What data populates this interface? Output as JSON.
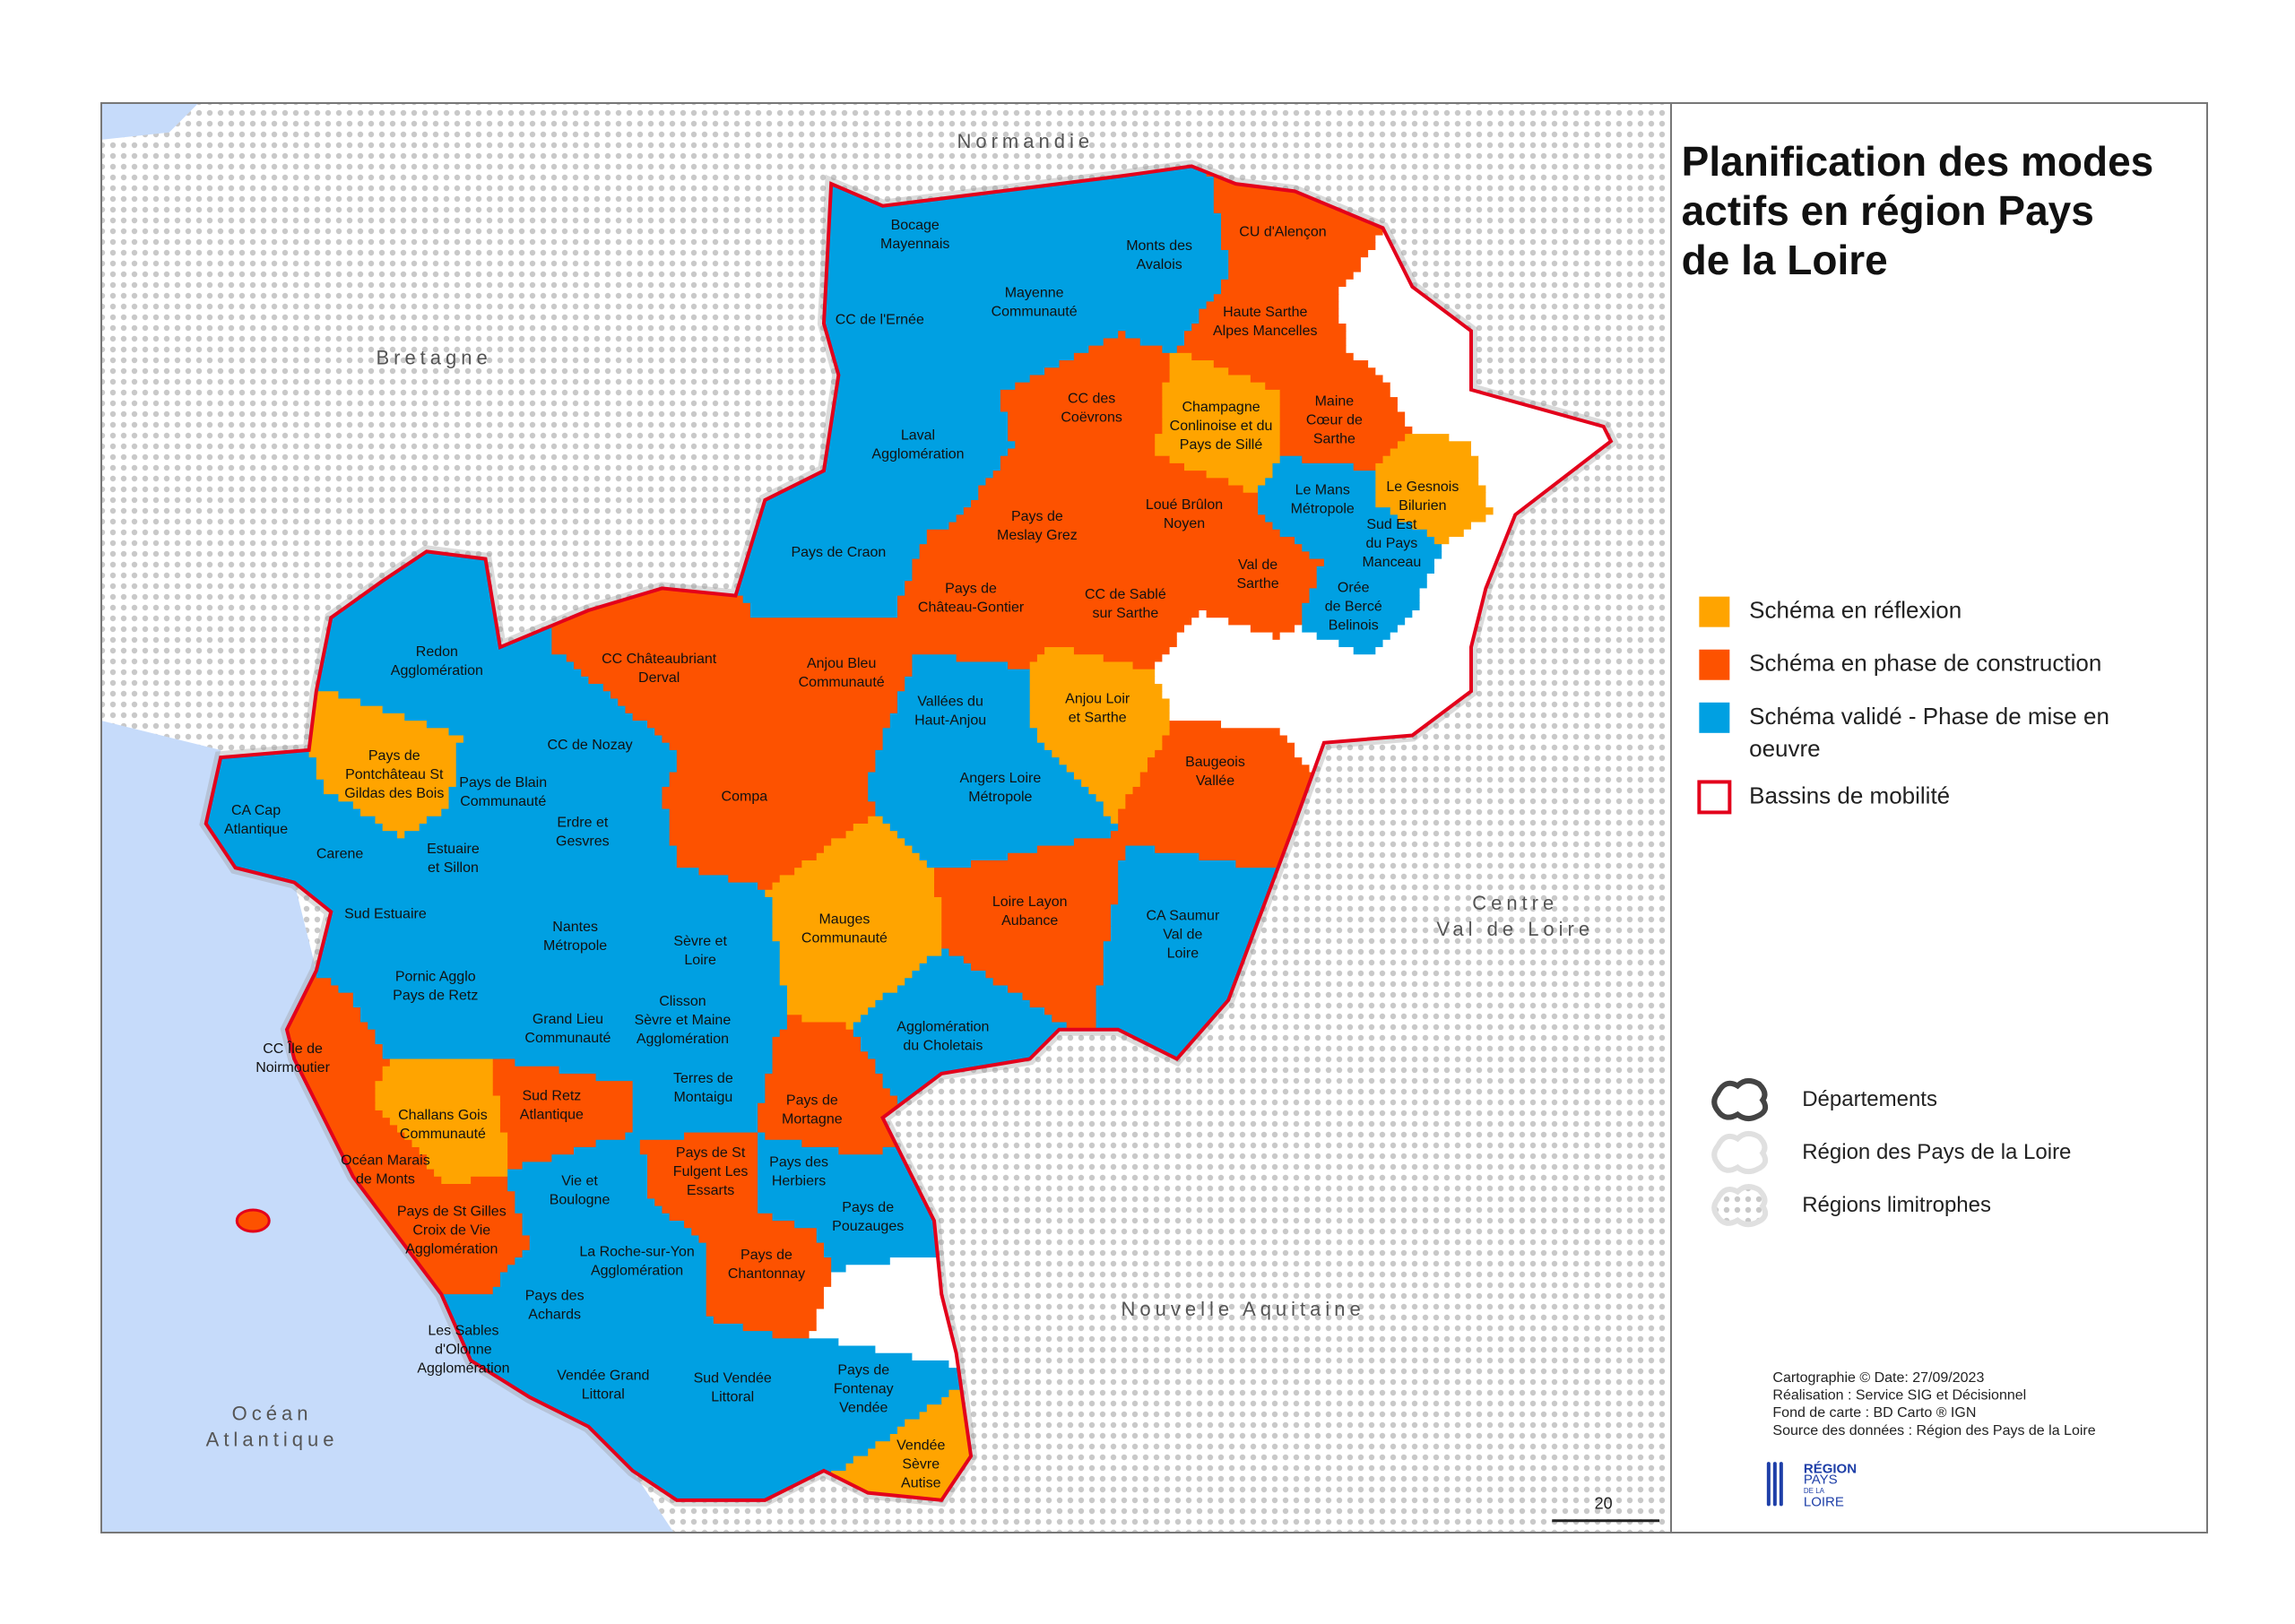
{
  "title": [
    "Planification des modes",
    "actifs en région Pays",
    "de la Loire"
  ],
  "regions": [
    [
      "Normandie"
    ],
    [
      "Bretagne"
    ],
    [
      "Centre",
      "Val de Loire"
    ],
    [
      "Nouvelle Aquitaine"
    ],
    [
      "Océan",
      "Atlantique"
    ]
  ],
  "territories": [
    {
      "label": [
        "Bocage",
        "Mayennais"
      ],
      "color": "#00a0e2"
    },
    {
      "label": [
        "Monts des",
        "Avalois"
      ],
      "color": "#00a0e2"
    },
    {
      "label": [
        "CU d'Alençon"
      ],
      "color": "#fd5200"
    },
    {
      "label": [
        "CC de l'Ernée"
      ],
      "color": "#00a0e2"
    },
    {
      "label": [
        "Mayenne",
        "Communauté"
      ],
      "color": "#00a0e2"
    },
    {
      "label": [
        "Haute Sarthe",
        "Alpes Mancelles"
      ],
      "color": "#fd5200"
    },
    {
      "label": [
        "CC des",
        "Coëvrons"
      ],
      "color": "#fd5200"
    },
    {
      "label": [
        "Champagne",
        "Conlinoise et du",
        "Pays de Sillé"
      ],
      "color": "#ffa400"
    },
    {
      "label": [
        "Maine",
        "Cœur de",
        "Sarthe"
      ],
      "color": "#fd5200"
    },
    {
      "label": [
        "Laval",
        "Agglomération"
      ],
      "color": "#00a0e2"
    },
    {
      "label": [
        "Le Mans",
        "Métropole"
      ],
      "color": "#00a0e2"
    },
    {
      "label": [
        "Le Gesnois",
        "Bilurien"
      ],
      "color": "#ffa400"
    },
    {
      "label": [
        "Loué Brûlon",
        "Noyen"
      ],
      "color": "#fd5200"
    },
    {
      "label": [
        "Pays de",
        "Meslay Grez"
      ],
      "color": "#fd5200"
    },
    {
      "label": [
        "Sud Est",
        "du Pays",
        "Manceau"
      ],
      "color": "#00a0e2"
    },
    {
      "label": [
        "Pays de Craon"
      ],
      "color": "#00a0e2"
    },
    {
      "label": [
        "Val de",
        "Sarthe"
      ],
      "color": "#fd5200"
    },
    {
      "label": [
        "Pays de",
        "Château-Gontier"
      ],
      "color": "#fd5200"
    },
    {
      "label": [
        "CC de Sablé",
        "sur Sarthe"
      ],
      "color": "#fd5200"
    },
    {
      "label": [
        "Orée",
        "de Bercé",
        "Belinois"
      ],
      "color": "#00a0e2"
    },
    {
      "label": [
        "Redon",
        "Agglomération"
      ],
      "color": "#00a0e2"
    },
    {
      "label": [
        "CC Châteaubriant",
        "Derval"
      ],
      "color": "#fd5200"
    },
    {
      "label": [
        "Anjou Bleu",
        "Communauté"
      ],
      "color": "#fd5200"
    },
    {
      "label": [
        "Vallées du",
        "Haut-Anjou"
      ],
      "color": "#00a0e2"
    },
    {
      "label": [
        "Anjou Loir",
        "et Sarthe"
      ],
      "color": "#ffa400"
    },
    {
      "label": [
        "CC de Nozay"
      ],
      "color": "#00a0e2"
    },
    {
      "label": [
        "Pays de",
        "Pontchâteau St",
        "Gildas des Bois"
      ],
      "color": "#ffa400"
    },
    {
      "label": [
        "Pays de Blain",
        "Communauté"
      ],
      "color": "#00a0e2"
    },
    {
      "label": [
        "Baugeois",
        "Vallée"
      ],
      "color": "#fd5200"
    },
    {
      "label": [
        "Angers Loire",
        "Métropole"
      ],
      "color": "#00a0e2"
    },
    {
      "label": [
        "Compa"
      ],
      "color": "#fd5200"
    },
    {
      "label": [
        "CA Cap",
        "Atlantique"
      ],
      "color": "#00a0e2"
    },
    {
      "label": [
        "Erdre et",
        "Gesvres"
      ],
      "color": "#00a0e2"
    },
    {
      "label": [
        "Carene"
      ],
      "color": "#00a0e2"
    },
    {
      "label": [
        "Estuaire",
        "et Sillon"
      ],
      "color": "#00a0e2"
    },
    {
      "label": [
        "Mauges",
        "Communauté"
      ],
      "color": "#ffa400"
    },
    {
      "label": [
        "Sud Estuaire"
      ],
      "color": "#00a0e2"
    },
    {
      "label": [
        "Nantes",
        "Métropole"
      ],
      "color": "#00a0e2"
    },
    {
      "label": [
        "Sèvre et",
        "Loire"
      ],
      "color": "#00a0e2"
    },
    {
      "label": [
        "Loire Layon",
        "Aubance"
      ],
      "color": "#fd5200"
    },
    {
      "label": [
        "CA Saumur",
        "Val de",
        "Loire"
      ],
      "color": "#00a0e2"
    },
    {
      "label": [
        "Pornic Agglo",
        "Pays de Retz"
      ],
      "color": "#00a0e2"
    },
    {
      "label": [
        "Grand Lieu",
        "Communauté"
      ],
      "color": "#00a0e2"
    },
    {
      "label": [
        "Clisson",
        "Sèvre et Maine",
        "Agglomération"
      ],
      "color": "#00a0e2"
    },
    {
      "label": [
        "Agglomération",
        "du Choletais"
      ],
      "color": "#00a0e2"
    },
    {
      "label": [
        "CC Île de",
        "Noirmoutier"
      ],
      "color": "#fd5200"
    },
    {
      "label": [
        "Terres de",
        "Montaigu"
      ],
      "color": "#00a0e2"
    },
    {
      "label": [
        "Sud Retz",
        "Atlantique"
      ],
      "color": "#fd5200"
    },
    {
      "label": [
        "Pays de",
        "Mortagne"
      ],
      "color": "#fd5200"
    },
    {
      "label": [
        "Challans Gois",
        "Communauté"
      ],
      "color": "#ffa400"
    },
    {
      "label": [
        "Océan Marais",
        "de Monts"
      ],
      "color": "#fd5200"
    },
    {
      "label": [
        "Pays de St",
        "Fulgent Les",
        "Essarts"
      ],
      "color": "#fd5200"
    },
    {
      "label": [
        "Pays des",
        "Herbiers"
      ],
      "color": "#00a0e2"
    },
    {
      "label": [
        "Vie et",
        "Boulogne"
      ],
      "color": "#00a0e2"
    },
    {
      "label": [
        "Pays de",
        "Pouzauges"
      ],
      "color": "#00a0e2"
    },
    {
      "label": [
        "Pays de St Gilles",
        "Croix de Vie",
        "Agglomération"
      ],
      "color": "#fd5200"
    },
    {
      "label": [
        "La Roche-sur-Yon",
        "Agglomération"
      ],
      "color": "#00a0e2"
    },
    {
      "label": [
        "Pays de",
        "Chantonnay"
      ],
      "color": "#fd5200"
    },
    {
      "label": [
        "Pays des",
        "Achards"
      ],
      "color": "#00a0e2"
    },
    {
      "label": [
        "Les Sables",
        "d'Olonne",
        "Agglomération"
      ],
      "color": "#00a0e2"
    },
    {
      "label": [
        "Vendée Grand",
        "Littoral"
      ],
      "color": "#00a0e2"
    },
    {
      "label": [
        "Sud Vendée",
        "Littoral"
      ],
      "color": "#00a0e2"
    },
    {
      "label": [
        "Pays de",
        "Fontenay",
        "Vendée"
      ],
      "color": "#00a0e2"
    },
    {
      "label": [
        "Vendée",
        "Sèvre",
        "Autise"
      ],
      "color": "#ffa400"
    }
  ],
  "legend": [
    {
      "label": [
        "Schéma en réflexion"
      ],
      "color": "#ffa400"
    },
    {
      "label": [
        "Schéma en phase de construction"
      ],
      "color": "#fd5200"
    },
    {
      "label": [
        "Schéma validé - Phase de mise en",
        "oeuvre"
      ],
      "color": "#00a0e2"
    },
    {
      "label": [
        "Bassins de mobilité"
      ],
      "stroke": "#e3001b"
    }
  ],
  "legend2": [
    "Départements",
    "Région des Pays de la Loire",
    "Régions limitrophes"
  ],
  "credits": [
    "Cartographie © Date: 27/09/2023",
    "Réalisation : Service SIG et Décisionnel",
    "Fond de carte : BD Carto ® IGN",
    "Source des données : Région des Pays de la Loire"
  ],
  "logo": [
    "RÉGION",
    "PAYS",
    "DE LA",
    "LOIRE"
  ],
  "scale": "20"
}
